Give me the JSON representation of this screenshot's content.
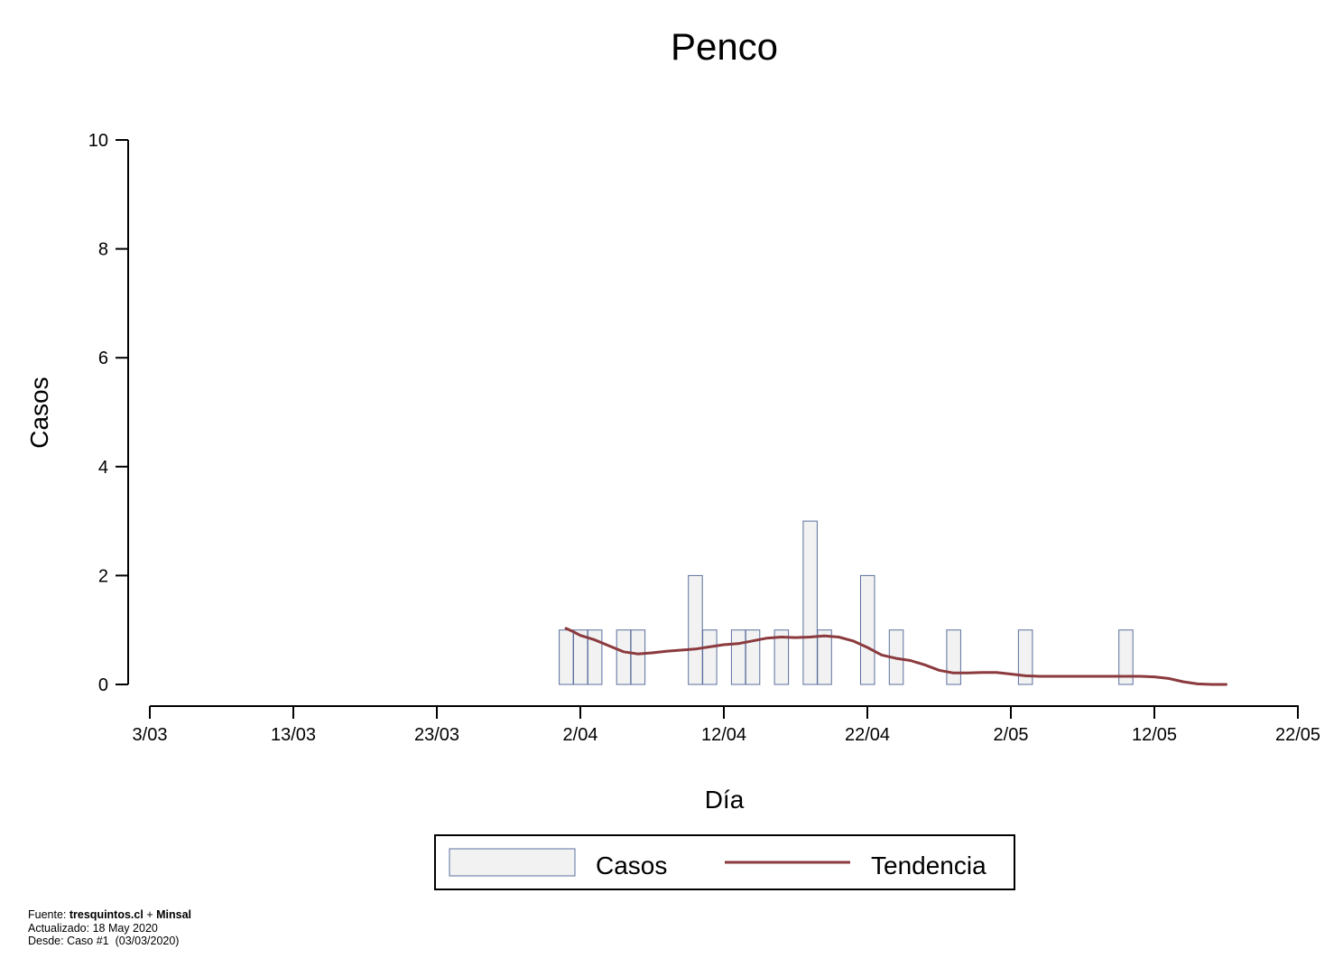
{
  "chart_data": {
    "type": "bar",
    "title": "Penco",
    "xlabel": "Día",
    "ylabel": "Casos",
    "ylim": [
      0,
      10
    ],
    "yticks": [
      0,
      2,
      4,
      6,
      8,
      10
    ],
    "x_start": "3/03",
    "x_end": "22/05",
    "xticks": [
      {
        "day": 0,
        "label": "3/03"
      },
      {
        "day": 10,
        "label": "13/03"
      },
      {
        "day": 20,
        "label": "23/03"
      },
      {
        "day": 30,
        "label": "2/04"
      },
      {
        "day": 40,
        "label": "12/04"
      },
      {
        "day": 50,
        "label": "22/04"
      },
      {
        "day": 60,
        "label": "2/05"
      },
      {
        "day": 70,
        "label": "12/05"
      },
      {
        "day": 80,
        "label": "22/05"
      }
    ],
    "bars": {
      "name": "Casos",
      "days": [
        29,
        30,
        31,
        33,
        34,
        38,
        39,
        41,
        42,
        44,
        46,
        47,
        50,
        52,
        56,
        61,
        68
      ],
      "values": [
        1,
        1,
        1,
        1,
        1,
        2,
        1,
        1,
        1,
        1,
        3,
        1,
        2,
        1,
        1,
        1,
        1
      ]
    },
    "trend": {
      "name": "Tendencia",
      "days": [
        29,
        29.5,
        30,
        31,
        32,
        33,
        34,
        35,
        36,
        37,
        38,
        39,
        40,
        41,
        42,
        43,
        44,
        45,
        46,
        47,
        48,
        49,
        50,
        51,
        52,
        53,
        54,
        55,
        56,
        57,
        58,
        59,
        60,
        61,
        62,
        63,
        64,
        65,
        66,
        67,
        68,
        69,
        70,
        71,
        72,
        73,
        74,
        75
      ],
      "values": [
        1.03,
        0.97,
        0.9,
        0.82,
        0.71,
        0.6,
        0.56,
        0.58,
        0.61,
        0.63,
        0.65,
        0.69,
        0.73,
        0.75,
        0.8,
        0.85,
        0.87,
        0.86,
        0.87,
        0.89,
        0.87,
        0.8,
        0.68,
        0.54,
        0.48,
        0.44,
        0.36,
        0.26,
        0.21,
        0.21,
        0.22,
        0.22,
        0.19,
        0.16,
        0.15,
        0.15,
        0.15,
        0.15,
        0.15,
        0.15,
        0.15,
        0.15,
        0.14,
        0.11,
        0.05,
        0.01,
        0.0,
        0.0
      ]
    },
    "legend": [
      "Casos",
      "Tendencia"
    ],
    "legend_position": "bottom-center",
    "colors": {
      "bar_fill": "#f2f2f2",
      "bar_stroke": "#5b6f9e",
      "trend": "#8b3a3e",
      "axis": "#000000"
    }
  },
  "footer": {
    "source_label": "Fuente: ",
    "source_site": "tresquintos.cl",
    "source_plus": " + ",
    "source_org": "Minsal",
    "updated": "Actualizado: 18 May 2020",
    "since": "Desde: Caso #1  (03/03/2020)"
  }
}
